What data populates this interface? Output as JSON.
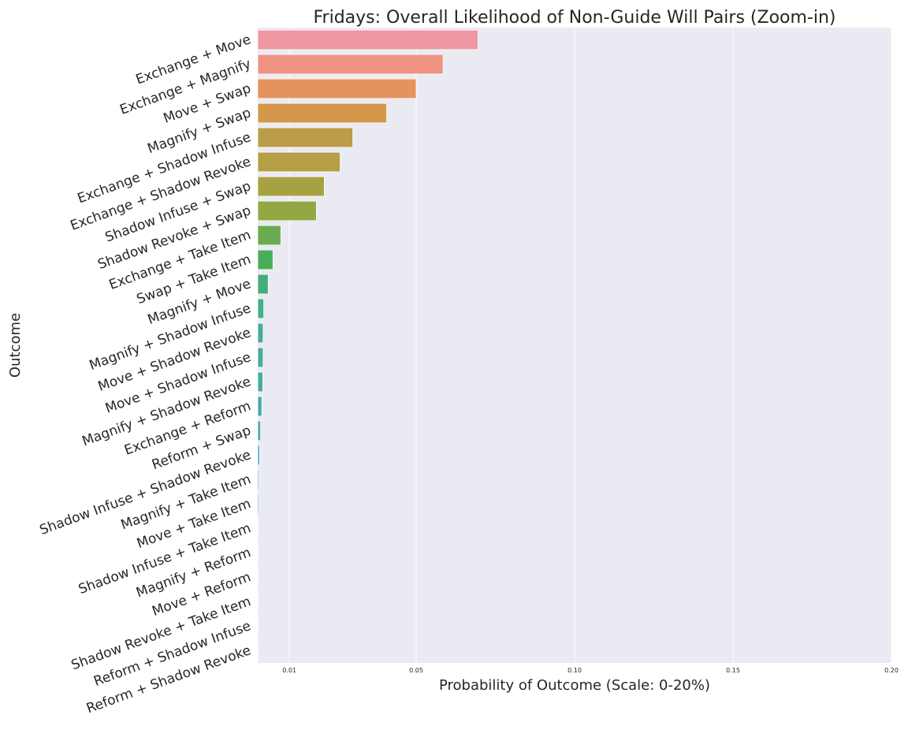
{
  "chart_data": {
    "type": "bar",
    "orientation": "horizontal",
    "title": "Fridays: Overall Likelihood of Non-Guide Will Pairs (Zoom-in)",
    "xlabel": "Probability of Outcome (Scale: 0-20%)",
    "ylabel": "Outcome",
    "xlim": [
      0,
      0.2
    ],
    "xticks": [
      0.01,
      0.05,
      0.1,
      0.15,
      0.2
    ],
    "xtick_labels": [
      "0.01",
      "0.05",
      "0.10",
      "0.15",
      "0.20"
    ],
    "grid": true,
    "categories": [
      "Exchange + Move",
      "Exchange + Magnify",
      "Move + Swap",
      "Magnify + Swap",
      "Exchange + Shadow Infuse",
      "Exchange + Shadow Revoke",
      "Shadow Infuse + Swap",
      "Shadow Revoke + Swap",
      "Exchange + Take Item",
      "Swap + Take Item",
      "Magnify + Move",
      "Magnify + Shadow Infuse",
      "Move + Shadow Revoke",
      "Move + Shadow Infuse",
      "Magnify + Shadow Revoke",
      "Exchange + Reform",
      "Reform + Swap",
      "Shadow Infuse + Shadow Revoke",
      "Magnify + Take Item",
      "Move + Take Item",
      "Shadow Infuse + Take Item",
      "Magnify + Reform",
      "Move + Reform",
      "Shadow Revoke + Take Item",
      "Reform + Shadow Infuse",
      "Reform + Shadow Revoke"
    ],
    "values": [
      0.0695,
      0.0585,
      0.05,
      0.0407,
      0.03,
      0.026,
      0.021,
      0.0185,
      0.0073,
      0.0048,
      0.0033,
      0.0019,
      0.0017,
      0.0017,
      0.0016,
      0.0013,
      0.0009,
      0.0006,
      0.0004,
      0.0004,
      0.0002,
      0.0001,
      0.0001,
      0.0001,
      0.0001,
      0.0001
    ],
    "colors": [
      "#ef97a2",
      "#ee9383",
      "#e5935e",
      "#d4974a",
      "#bb9c47",
      "#b49e46",
      "#a6a244",
      "#93a843",
      "#6bab50",
      "#4aad5a",
      "#45ad7c",
      "#48ad8c",
      "#48ab95",
      "#49ab9c",
      "#49aaa3",
      "#4aa9ab",
      "#4ba8b4",
      "#52a4cb",
      "#84a1df",
      "#9a9ee4",
      "#aa96ea",
      "#ba8ceb",
      "#cd7fe6",
      "#e07ad4",
      "#e97cc0",
      "#eb82ad"
    ]
  }
}
